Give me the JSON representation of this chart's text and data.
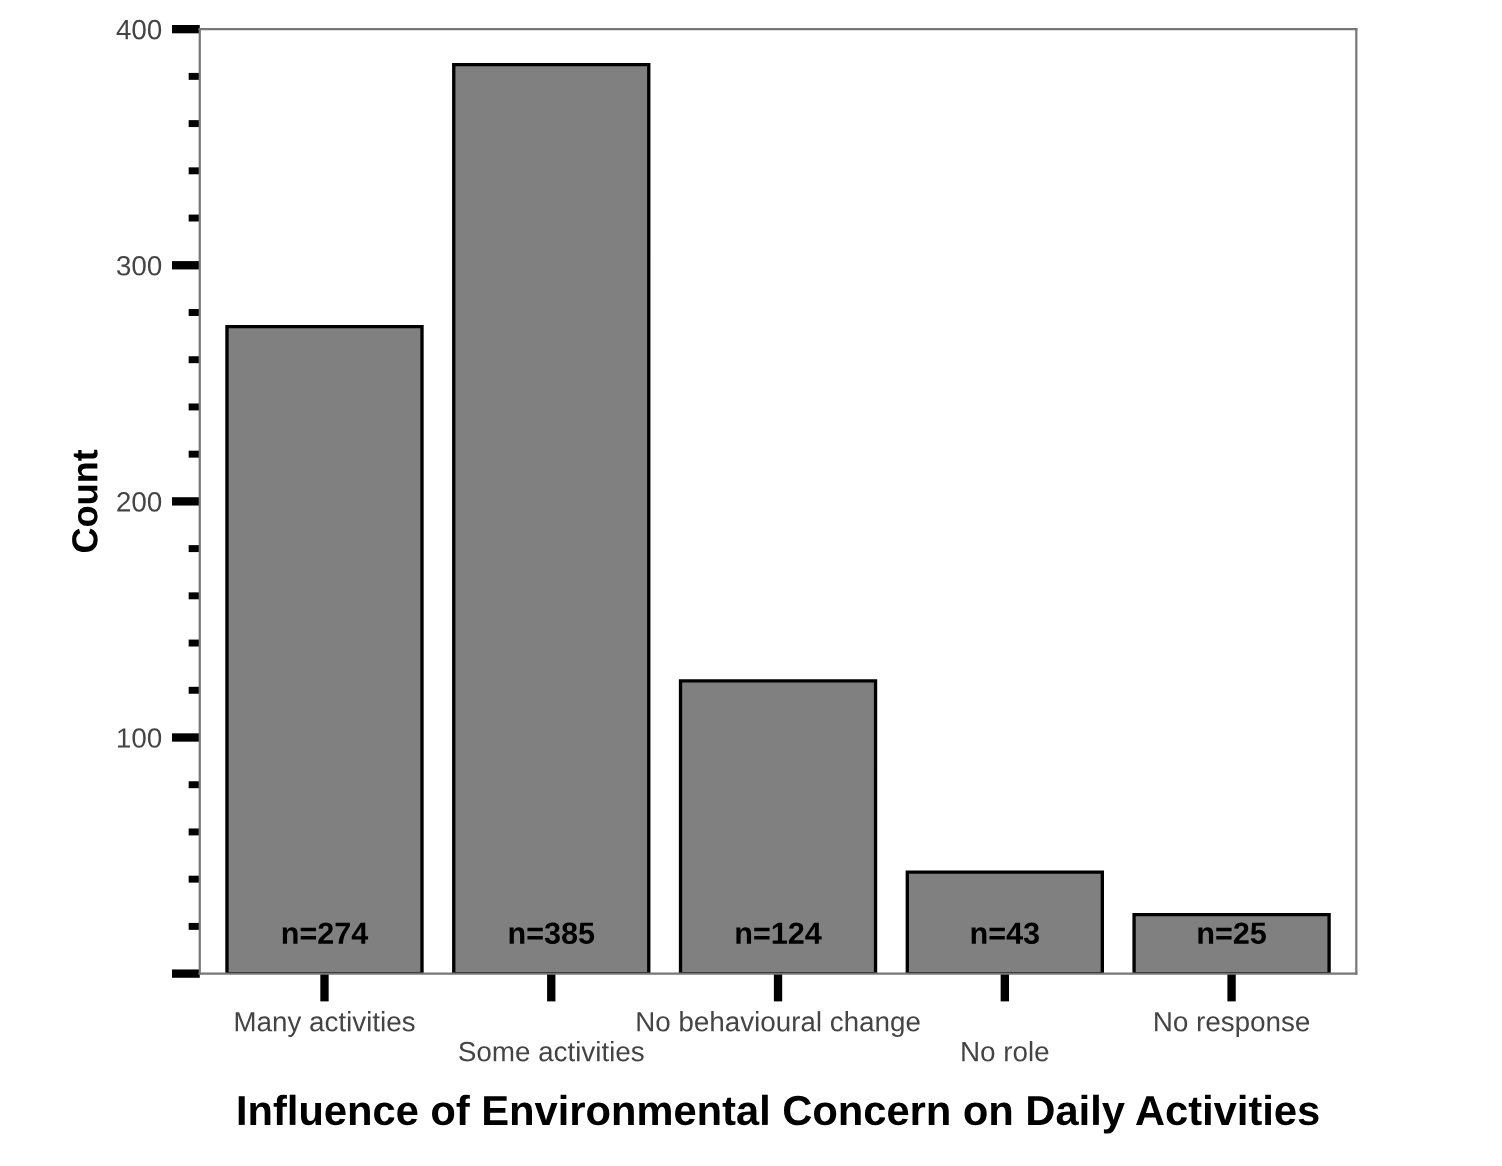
{
  "chart_data": {
    "type": "bar",
    "xlabel": "Influence of Environmental Concern on Daily Activities",
    "ylabel": "Count",
    "categories": [
      "Many activities",
      "Some activities",
      "No behavioural change",
      "No role",
      "No response"
    ],
    "values": [
      274,
      385,
      124,
      43,
      25
    ],
    "value_labels": [
      "n=274",
      "n=385",
      "n=124",
      "n=43",
      "n=25"
    ],
    "color": "#808080",
    "ylim": [
      0,
      400
    ],
    "yticks": [
      {
        "value": 0,
        "label": null
      },
      100,
      200,
      300,
      400
    ],
    "grid": false,
    "legend": false
  }
}
